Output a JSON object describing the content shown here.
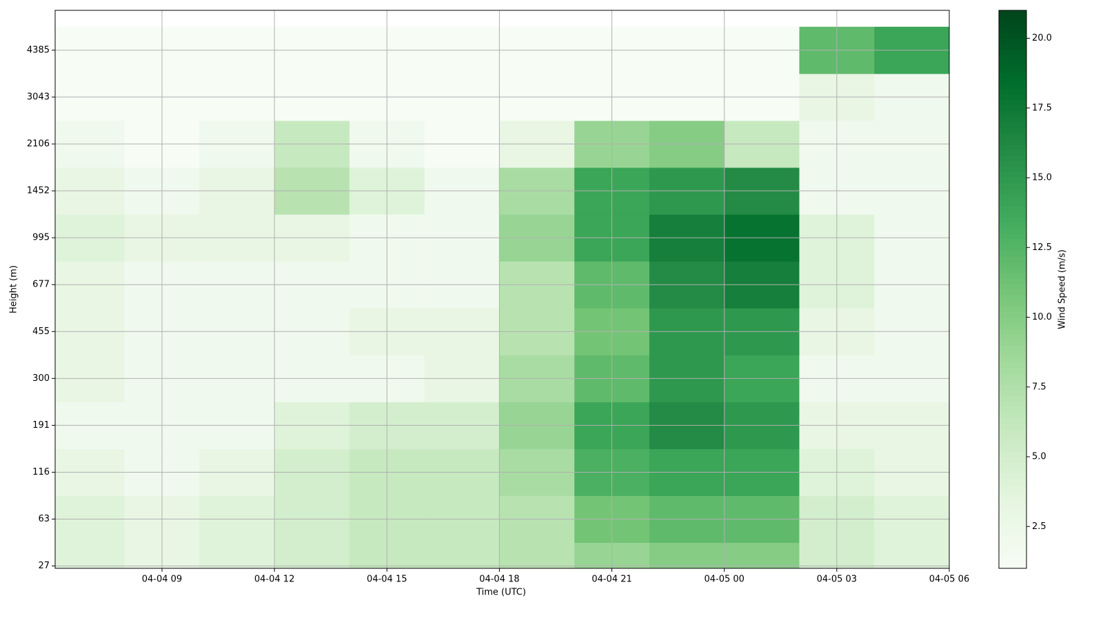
{
  "chart_data": {
    "type": "heatmap",
    "xlabel": "Time (UTC)",
    "ylabel": "Height (m)",
    "colorbar_label": "Wind Speed (m/s)",
    "colormap": "Greens",
    "grid": true,
    "xlim": [
      6.15,
      30
    ],
    "ylim": [
      -0.05,
      11.85
    ],
    "xticks": [
      {
        "value": 9,
        "label": "04-04 09"
      },
      {
        "value": 12,
        "label": "04-04 12"
      },
      {
        "value": 15,
        "label": "04-04 15"
      },
      {
        "value": 18,
        "label": "04-04 18"
      },
      {
        "value": 21,
        "label": "04-04 21"
      },
      {
        "value": 24,
        "label": "04-05 00"
      },
      {
        "value": 27,
        "label": "04-05 03"
      },
      {
        "value": 30,
        "label": "04-05 06"
      }
    ],
    "yticks": [
      {
        "value": 0,
        "label": "27"
      },
      {
        "value": 1,
        "label": "63"
      },
      {
        "value": 2,
        "label": "116"
      },
      {
        "value": 3,
        "label": "191"
      },
      {
        "value": 4,
        "label": "300"
      },
      {
        "value": 5,
        "label": "455"
      },
      {
        "value": 6,
        "label": "677"
      },
      {
        "value": 7,
        "label": "995"
      },
      {
        "value": 8,
        "label": "1452"
      },
      {
        "value": 9,
        "label": "2106"
      },
      {
        "value": 10,
        "label": "3043"
      },
      {
        "value": 11,
        "label": "4385"
      }
    ],
    "clim": [
      1,
      21
    ],
    "cticks": [
      2.5,
      {
        "value": 5,
        "label": "5.0"
      },
      7.5,
      {
        "value": 10,
        "label": "10.0"
      },
      12.5,
      {
        "value": 15,
        "label": "15.0"
      },
      17.5,
      {
        "value": 20,
        "label": "20.0"
      }
    ],
    "x_edges": [
      6,
      8,
      10,
      12,
      14,
      16,
      18,
      20,
      22,
      24,
      26,
      28,
      30
    ],
    "z": [
      [
        4,
        3,
        4,
        5,
        6,
        6,
        7,
        9,
        10,
        10,
        5,
        4
      ],
      [
        4,
        3,
        4,
        5,
        6,
        6,
        7,
        11,
        12,
        12,
        5,
        4
      ],
      [
        3,
        2,
        3,
        5,
        6,
        6,
        8,
        13,
        14,
        14,
        4,
        3
      ],
      [
        2,
        2,
        2,
        4,
        5,
        5,
        9,
        14,
        16,
        15,
        3,
        3
      ],
      [
        3,
        2,
        2,
        2,
        2,
        3,
        8,
        12,
        15,
        14,
        2,
        2
      ],
      [
        3,
        2,
        2,
        2,
        3,
        3,
        7,
        11,
        15,
        15,
        3,
        2
      ],
      [
        3,
        2,
        2,
        2,
        2,
        2,
        7,
        12,
        16,
        17,
        4,
        2
      ],
      [
        4,
        3,
        3,
        3,
        2,
        2,
        9,
        14,
        17,
        18,
        4,
        2
      ],
      [
        3,
        2,
        3,
        7,
        4,
        2,
        8,
        14,
        15,
        16,
        2,
        2
      ],
      [
        2,
        1,
        2,
        6,
        2,
        1,
        3,
        9,
        10,
        6,
        2,
        2
      ],
      [
        1,
        1,
        1,
        1,
        1,
        1,
        1,
        1,
        1,
        1,
        3,
        2
      ],
      [
        1,
        1,
        1,
        1,
        1,
        1,
        1,
        1,
        1,
        1,
        12,
        14
      ]
    ]
  }
}
